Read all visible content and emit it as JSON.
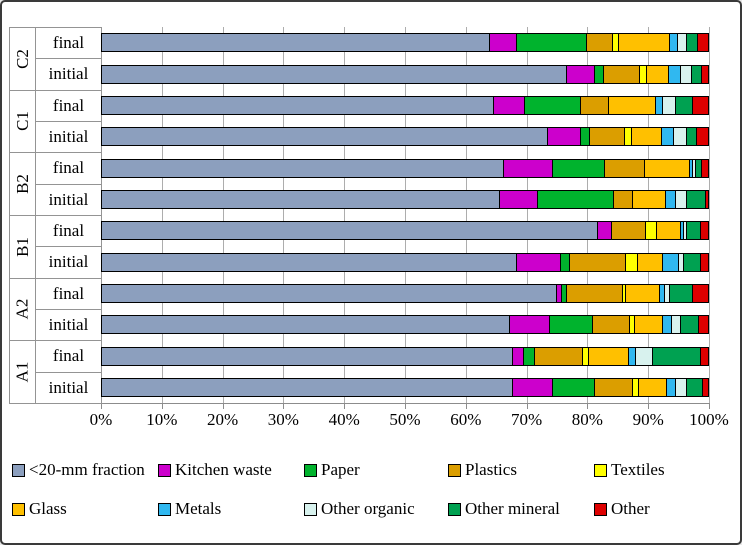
{
  "chart_data": {
    "type": "bar",
    "orientation": "horizontal",
    "stacked": true,
    "title": "",
    "xlabel": "",
    "ylabel": "",
    "xlim": [
      0,
      100
    ],
    "x_tick_labels": [
      "0%",
      "10%",
      "20%",
      "30%",
      "40%",
      "50%",
      "60%",
      "70%",
      "80%",
      "90%",
      "100%"
    ],
    "grid": true,
    "legend_position": "bottom",
    "categories": [
      "<20-mm fraction",
      "Kitchen waste",
      "Paper",
      "Plastics",
      "Textiles",
      "Glass",
      "Metals",
      "Other organic",
      "Other mineral",
      "Other"
    ],
    "colors": [
      "#8C9FBE",
      "#CC00CC",
      "#00B32D",
      "#DB9E00",
      "#FFFF00",
      "#FFC000",
      "#30B8F0",
      "#D8F2EE",
      "#00A151",
      "#DE0000"
    ],
    "groups": [
      {
        "label": "C2",
        "bars": [
          {
            "label": "final",
            "values": [
              64.0,
              4.5,
              11.5,
              4.3,
              1.0,
              8.4,
              1.4,
              1.5,
              1.8,
              1.6
            ]
          },
          {
            "label": "initial",
            "values": [
              76.7,
              4.6,
              1.5,
              5.9,
              1.2,
              3.7,
              2.0,
              1.7,
              1.7,
              1.0
            ]
          }
        ]
      },
      {
        "label": "C1",
        "bars": [
          {
            "label": "final",
            "values": [
              64.7,
              5.1,
              9.3,
              4.6,
              0.0,
              7.8,
              1.0,
              2.3,
              2.8,
              2.4
            ]
          },
          {
            "label": "initial",
            "values": [
              73.6,
              5.4,
              1.6,
              5.7,
              1.1,
              5.0,
              2.0,
              2.2,
              1.6,
              1.8
            ]
          }
        ]
      },
      {
        "label": "B2",
        "bars": [
          {
            "label": "final",
            "values": [
              66.4,
              8.0,
              8.6,
              6.6,
              0.0,
              7.4,
              0.6,
              0.5,
              1.0,
              0.9
            ]
          },
          {
            "label": "initial",
            "values": [
              65.7,
              6.2,
              12.6,
              3.1,
              0.0,
              5.4,
              1.8,
              1.8,
              3.1,
              0.3
            ]
          }
        ]
      },
      {
        "label": "B1",
        "bars": [
          {
            "label": "final",
            "values": [
              81.8,
              2.3,
              0.0,
              5.6,
              1.9,
              4.0,
              0.5,
              0.5,
              2.2,
              1.2
            ]
          },
          {
            "label": "initial",
            "values": [
              68.4,
              7.4,
              1.4,
              9.2,
              2.0,
              4.2,
              2.7,
              0.7,
              2.8,
              1.2
            ]
          }
        ]
      },
      {
        "label": "A2",
        "bars": [
          {
            "label": "final",
            "values": [
              75.0,
              0.9,
              0.8,
              9.3,
              0.5,
              5.6,
              0.8,
              0.8,
              3.8,
              2.5
            ]
          },
          {
            "label": "initial",
            "values": [
              67.3,
              6.7,
              7.1,
              6.1,
              0.7,
              4.6,
              1.5,
              1.5,
              3.0,
              1.5
            ]
          }
        ]
      },
      {
        "label": "A1",
        "bars": [
          {
            "label": "final",
            "values": [
              67.9,
              1.8,
              1.7,
              8.0,
              1.0,
              6.6,
              1.2,
              2.8,
              7.9,
              1.1
            ]
          },
          {
            "label": "initial",
            "values": [
              67.8,
              6.7,
              6.8,
              6.4,
              0.9,
              4.6,
              1.6,
              1.7,
              2.7,
              0.8
            ]
          }
        ]
      }
    ],
    "legend_rows": [
      [
        "<20-mm fraction",
        "Kitchen waste",
        "Paper",
        "Plastics",
        "Textiles"
      ],
      [
        "Glass",
        "Metals",
        "Other organic",
        "Other mineral",
        "Other"
      ]
    ]
  },
  "layout_colors": {
    "gridline": "#adadad",
    "bar_border": "#000000",
    "cell_border": "#949494"
  }
}
